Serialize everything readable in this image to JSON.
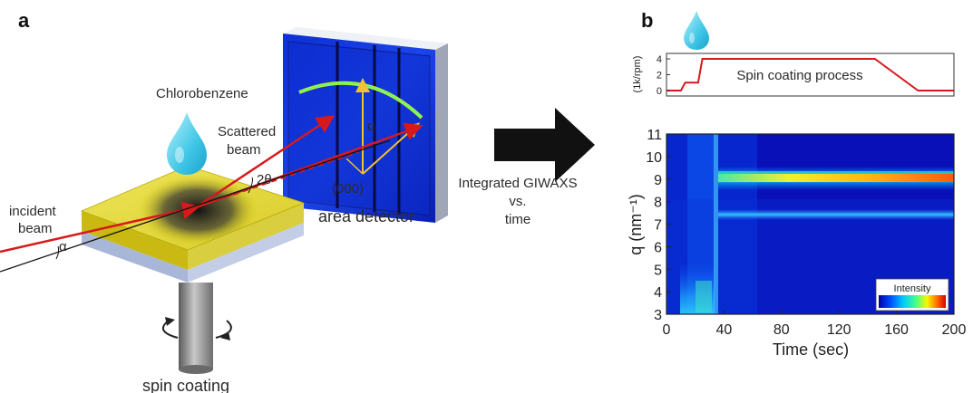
{
  "panel_a": {
    "letter": "a",
    "labels": {
      "chlorobenzene": "Chlorobenzene",
      "scattered_1": "Scattered",
      "scattered_2": "beam",
      "incident_1": "incident",
      "incident_2": "beam",
      "alpha": "α",
      "two_theta": "2θ",
      "q": "q",
      "origin": "(000)",
      "detector": "area detector",
      "spin_coating": "spin coating"
    }
  },
  "arrow_caption": {
    "line1": "Integrated GIWAXS",
    "line2": "vs.",
    "line3": "time"
  },
  "panel_b": {
    "letter": "b",
    "top_plot": {
      "ylabel": "(1k/rpm)",
      "yticks": [
        "0",
        "2",
        "4"
      ],
      "annotation": "Spin coating process",
      "line_color": "#d7191c"
    },
    "main_plot": {
      "ylabel": "q (nm⁻¹)",
      "xlabel": "Time (sec)",
      "colorbar_label": "Intensity"
    }
  },
  "chart_data": [
    {
      "type": "line",
      "title": "Spin coating process",
      "ylabel": "(1k/rpm)",
      "xlim": [
        0,
        200
      ],
      "ylim": [
        0,
        4
      ],
      "yticks": [
        0,
        2,
        4
      ],
      "x": [
        0,
        10,
        13,
        22,
        25,
        145,
        175,
        200
      ],
      "y": [
        0,
        0,
        1,
        1,
        4,
        4,
        0,
        0
      ]
    },
    {
      "type": "heatmap",
      "xlabel": "Time (sec)",
      "ylabel": "q (nm⁻¹)",
      "xlim": [
        0,
        200
      ],
      "ylim": [
        3,
        11
      ],
      "xticks": [
        0,
        40,
        80,
        120,
        160,
        200
      ],
      "yticks": [
        3,
        4,
        5,
        6,
        7,
        8,
        9,
        10,
        11
      ],
      "colorscale": [
        "#0000a8",
        "#0050ff",
        "#00c8ff",
        "#40ff90",
        "#f8f800",
        "#ff6400",
        "#d00000"
      ],
      "colorbar_label": "Intensity",
      "features": [
        {
          "description": "strong scattering peak",
          "q": 9.9,
          "t_start": 33,
          "t_end": 200,
          "intensity": "high"
        },
        {
          "description": "weak scattering peak",
          "q": 8.25,
          "t_start": 33,
          "t_end": 200,
          "intensity": "low"
        },
        {
          "description": "broad low-q solution scattering",
          "q_range": [
            3,
            5
          ],
          "t_start": 10,
          "t_end": 33,
          "intensity": "medium"
        }
      ]
    }
  ]
}
